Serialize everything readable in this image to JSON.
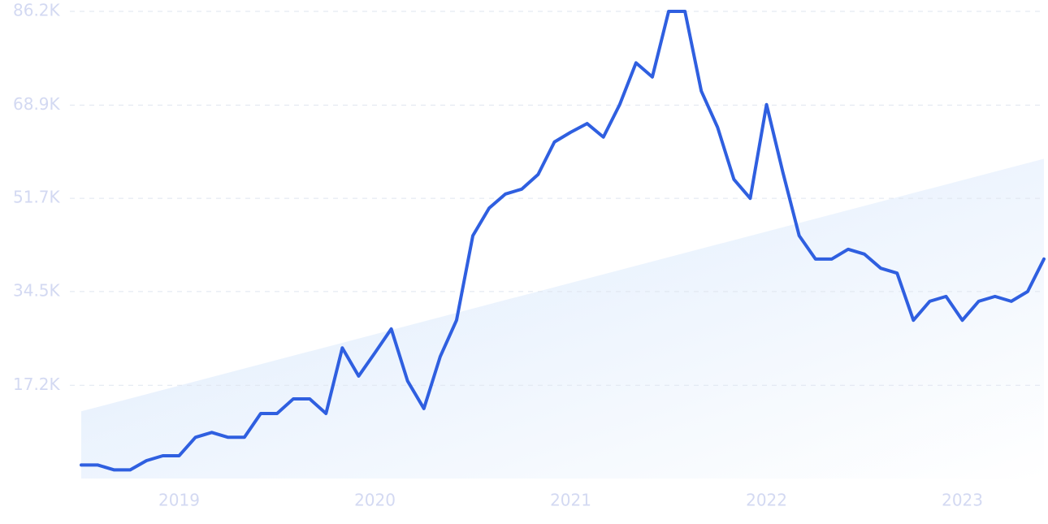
{
  "chart_data": {
    "type": "line",
    "categories": [
      null,
      null,
      null,
      null,
      null,
      null,
      "2019",
      null,
      null,
      null,
      null,
      null,
      null,
      null,
      null,
      null,
      null,
      null,
      "2020",
      null,
      null,
      null,
      null,
      null,
      null,
      null,
      null,
      null,
      null,
      null,
      "2021",
      null,
      null,
      null,
      null,
      null,
      null,
      null,
      null,
      null,
      null,
      null,
      "2022",
      null,
      null,
      null,
      null,
      null,
      null,
      null,
      null,
      null,
      null,
      null,
      "2023",
      null,
      null,
      null,
      null,
      null
    ],
    "series": [
      {
        "color": "#2f5fe0",
        "values": [
          2500,
          2500,
          1600,
          1600,
          3300,
          4200,
          4200,
          7600,
          8500,
          7600,
          7600,
          12000,
          12000,
          14700,
          14700,
          12000,
          24100,
          18900,
          23200,
          27600,
          18000,
          12900,
          22500,
          29200,
          44800,
          49900,
          52500,
          53400,
          56100,
          62100,
          63900,
          65500,
          63000,
          69000,
          76700,
          74100,
          86200,
          86200,
          71500,
          64800,
          55200,
          51700,
          69000,
          56500,
          44800,
          40500,
          40500,
          42300,
          41400,
          38800,
          37900,
          29200,
          32700,
          33600,
          29200,
          32700,
          33600,
          32700,
          34500,
          40500
        ]
      }
    ],
    "trend": [
      12400,
      59000
    ],
    "trend_color": "#dceafc",
    "ylim": [
      0,
      86200
    ],
    "yticks": [
      {
        "value": 17200,
        "label": "17.2K"
      },
      {
        "value": 34500,
        "label": "34.5K"
      },
      {
        "value": 51700,
        "label": "51.7K"
      },
      {
        "value": 68900,
        "label": "68.9K"
      },
      {
        "value": 86200,
        "label": "86.2K"
      }
    ],
    "grid": true
  }
}
